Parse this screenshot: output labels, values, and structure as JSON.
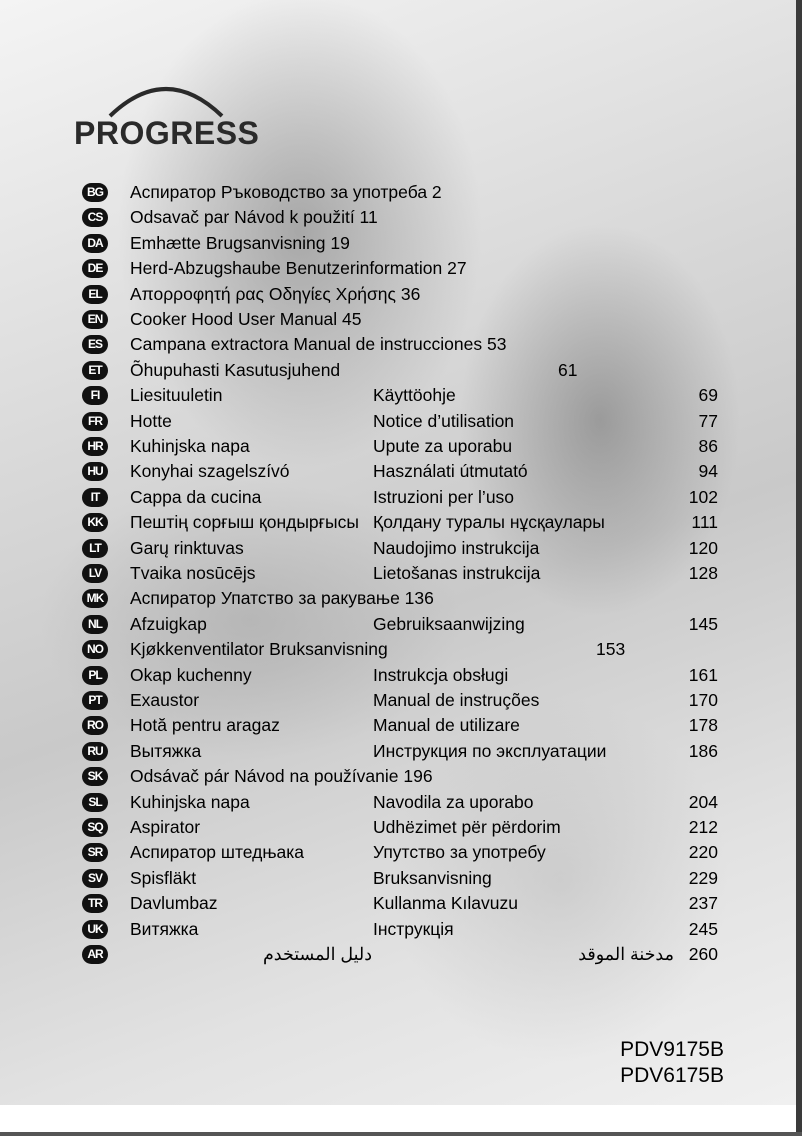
{
  "brand": {
    "name": "PROGRESS"
  },
  "languages": [
    {
      "code": "BG",
      "text": "Аспиратор   Ръководство за употреба   2"
    },
    {
      "code": "CS",
      "text": "Odsavač par Návod k použití 11"
    },
    {
      "code": "DA",
      "text": "Emhætte Brugsanvisning 19"
    },
    {
      "code": "DE",
      "text": "Herd-Abzugshaube Benutzerinformation 27"
    },
    {
      "code": "EL",
      "text": "Απορροφητή ρας   Οδηγίες Χρήσης   36"
    },
    {
      "code": "EN",
      "text": "Cooker Hood User Manual 45"
    },
    {
      "code": "ES",
      "text": "Campana extractora Manual de instrucciones 53"
    },
    {
      "code": "ET",
      "text": "Õhupuhasti Kasutusjuhend",
      "page": "61"
    },
    {
      "code": "FI",
      "name": "Liesituuletin",
      "manual": "Käyttöohje",
      "page": "69"
    },
    {
      "code": "FR",
      "name": "Hotte",
      "manual": "Notice d’utilisation",
      "page": "77"
    },
    {
      "code": "HR",
      "name": "Kuhinjska napa",
      "manual": "Upute za uporabu",
      "page": "86"
    },
    {
      "code": "HU",
      "name": "Konyhai szagelszívó",
      "manual": "Használati útmutató",
      "page": "94"
    },
    {
      "code": "IT",
      "name": "Cappa da cucina",
      "manual": "Istruzioni per l’uso",
      "page": "102"
    },
    {
      "code": "KK",
      "name": "Пештің сорғыш қондырғысы",
      "manual": "Қолдану туралы нұсқаулары",
      "page": "111"
    },
    {
      "code": "LT",
      "name": "Garų rinktuvas",
      "manual": "Naudojimo instrukcija",
      "page": "120"
    },
    {
      "code": "LV",
      "name": "Tvaika nosūcējs",
      "manual": "Lietošanas instrukcija",
      "page": "128"
    },
    {
      "code": "MK",
      "text": "Аспиратор   Упатство за ракување   136"
    },
    {
      "code": "NL",
      "name": "Afzuigkap",
      "manual": "Gebruiksaanwijzing",
      "page": "145"
    },
    {
      "code": "NO",
      "text": "Kjøkkenventilator Bruksanvisning",
      "page": "153"
    },
    {
      "code": "PL",
      "name": "Okap kuchenny",
      "manual": "Instrukcja obsługi",
      "page": "161"
    },
    {
      "code": "PT",
      "name": "Exaustor",
      "manual": "Manual de instruções",
      "page": "170"
    },
    {
      "code": "RO",
      "name": "Hotă pentru aragaz",
      "manual": "Manual de utilizare",
      "page": "178"
    },
    {
      "code": "RU",
      "name": "Вытяжка",
      "manual": "Инструкция по эксплуатации",
      "page": "186"
    },
    {
      "code": "SK",
      "text": "Odsávač pár Návod na používanie 196"
    },
    {
      "code": "SL",
      "name": "Kuhinjska napa",
      "manual": "Navodila za uporabo",
      "page": "204"
    },
    {
      "code": "SQ",
      "name": "Aspirator",
      "manual": "Udhëzimet për përdorim",
      "page": "212"
    },
    {
      "code": "SR",
      "name": "Аспиратор штедњака",
      "manual": "Упутство за употребу",
      "page": "220"
    },
    {
      "code": "SV",
      "name": "Spisfläkt",
      "manual": "Bruksanvisning",
      "page": "229"
    },
    {
      "code": "TR",
      "name": "Davlumbaz",
      "manual": "Kullanma Kılavuzu",
      "page": "237"
    },
    {
      "code": "UK",
      "name": "Витяжка",
      "manual": "Інструкція",
      "page": "245"
    },
    {
      "code": "AR",
      "name": "مدخنة الموقد",
      "manual": "دليل المستخدم",
      "page": "260"
    }
  ],
  "models": [
    "PDV9175B",
    "PDV6175B"
  ]
}
